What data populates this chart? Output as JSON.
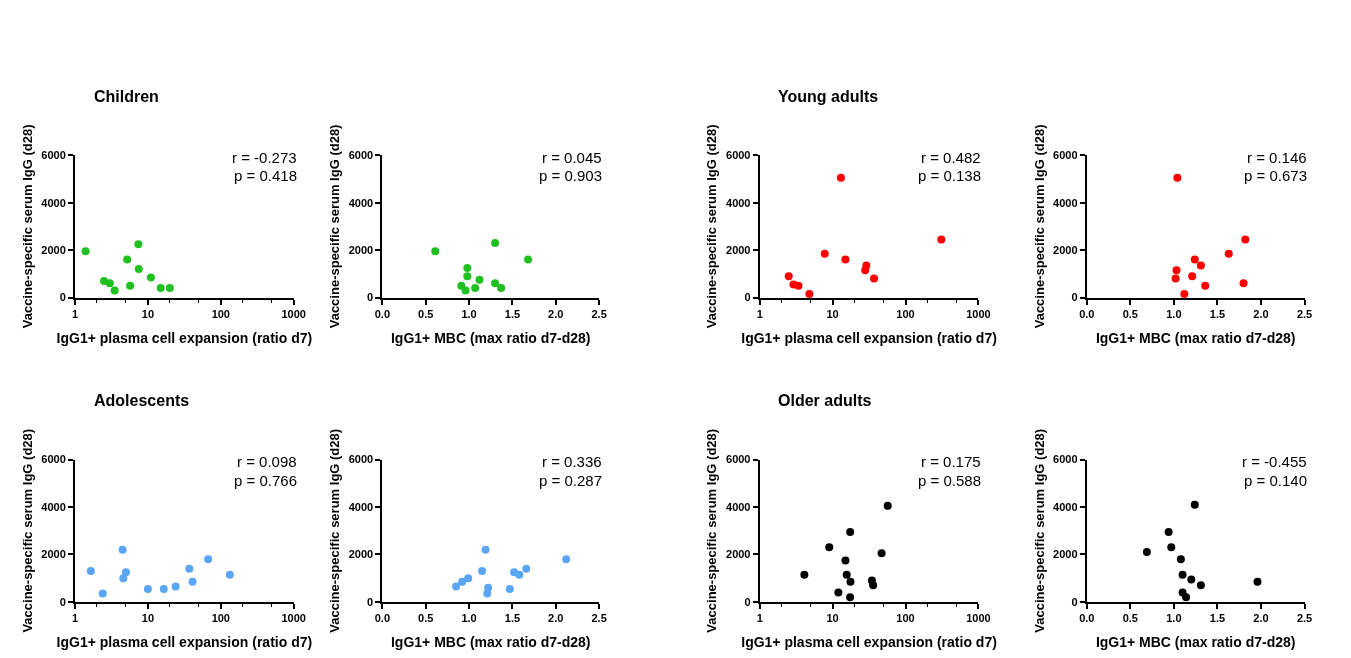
{
  "chart_data": [
    {
      "type": "scatter",
      "title": "Children",
      "xlabel": "IgG1+ plasma cell expansion (ratio d7)",
      "ylabel": "Vaccine-specific serum IgG (d28)",
      "log": "x",
      "marker": "circle",
      "xlim": [
        1,
        1000
      ],
      "xticks": [
        1,
        10,
        100,
        1000
      ],
      "ylim": [
        0,
        6000
      ],
      "yticks": [
        0,
        2000,
        4000,
        6000
      ],
      "annotations": [
        "r = -0.273",
        "p = 0.418"
      ],
      "color": "#1fc01f",
      "x": [
        1.4,
        2.5,
        3.0,
        3.5,
        5.2,
        5.7,
        7.4,
        7.5,
        11,
        15,
        20
      ],
      "values": [
        1950,
        700,
        600,
        300,
        1600,
        500,
        2250,
        1200,
        850,
        400,
        400
      ]
    },
    {
      "type": "scatter",
      "xlabel": "IgG1+ MBC (max ratio d7-d28)",
      "ylabel": "Vaccine-specific serum IgG (d28)",
      "marker": "circle",
      "xlim": [
        0,
        2.5
      ],
      "xticks": [
        {
          "value": 0,
          "label": "0.0"
        },
        0.5,
        {
          "value": 1,
          "label": "1.0"
        },
        1.5,
        {
          "value": 2,
          "label": "2.0"
        },
        2.5
      ],
      "ylim": [
        0,
        6000
      ],
      "yticks": [
        0,
        2000,
        4000,
        6000
      ],
      "annotations": [
        "r = 0.045",
        "p = 0.903"
      ],
      "color": "#1fc01f",
      "x": [
        0.61,
        0.91,
        0.96,
        0.98,
        0.98,
        1.07,
        1.12,
        1.3,
        1.3,
        1.37,
        1.68
      ],
      "values": [
        1950,
        500,
        300,
        900,
        1250,
        400,
        750,
        2300,
        600,
        400,
        1600
      ]
    },
    {
      "type": "scatter",
      "title": "Young adults",
      "xlabel": "IgG1+ plasma cell expansion (ratio d7)",
      "ylabel": "Vaccine-specific serum IgG (d28)",
      "log": "x",
      "marker": "circle",
      "xlim": [
        1,
        1000
      ],
      "xticks": [
        1,
        10,
        100,
        1000
      ],
      "ylim": [
        0,
        6000
      ],
      "yticks": [
        0,
        2000,
        4000,
        6000
      ],
      "annotations": [
        "r = 0.482",
        "p = 0.138"
      ],
      "color": "#ff0000",
      "x": [
        2.5,
        2.9,
        3.4,
        4.8,
        7.8,
        13,
        15,
        29,
        28,
        37,
        310
      ],
      "values": [
        900,
        550,
        500,
        150,
        1850,
        5050,
        1600,
        1350,
        1150,
        800,
        2450
      ]
    },
    {
      "type": "scatter",
      "xlabel": "IgG1+ MBC (max ratio d7-d28)",
      "ylabel": "Vaccine-specific serum IgG (d28)",
      "marker": "circle",
      "xlim": [
        0,
        2.5
      ],
      "xticks": [
        {
          "value": 0,
          "label": "0.0"
        },
        0.5,
        {
          "value": 1,
          "label": "1.0"
        },
        1.5,
        {
          "value": 2,
          "label": "2.0"
        },
        2.5
      ],
      "ylim": [
        0,
        6000
      ],
      "yticks": [
        0,
        2000,
        4000,
        6000
      ],
      "annotations": [
        "r = 0.146",
        "p = 0.673"
      ],
      "color": "#ff0000",
      "x": [
        1.02,
        1.03,
        1.04,
        1.12,
        1.21,
        1.24,
        1.31,
        1.36,
        1.63,
        1.8,
        1.82
      ],
      "values": [
        800,
        1150,
        5050,
        150,
        900,
        1600,
        1350,
        500,
        1850,
        600,
        2450
      ]
    },
    {
      "type": "scatter",
      "title": "Adolescents",
      "xlabel": "IgG1+ plasma cell expansion (ratio d7)",
      "ylabel": "Vaccine-specific serum IgG (d28)",
      "log": "x",
      "marker": "circle",
      "xlim": [
        1,
        1000
      ],
      "xticks": [
        1,
        10,
        100,
        1000
      ],
      "ylim": [
        0,
        6000
      ],
      "yticks": [
        0,
        2000,
        4000,
        6000
      ],
      "annotations": [
        "r = 0.098",
        "p = 0.766"
      ],
      "color": "#5aa6f5",
      "x": [
        1.65,
        2.4,
        4.5,
        4.6,
        5.0,
        10,
        16.5,
        24,
        37,
        41,
        67,
        133
      ],
      "values": [
        1300,
        350,
        2200,
        1000,
        1250,
        550,
        550,
        650,
        1400,
        850,
        1800,
        1150
      ]
    },
    {
      "type": "scatter",
      "xlabel": "IgG1+ MBC (max ratio d7-d28)",
      "ylabel": "Vaccine-specific serum IgG (d28)",
      "marker": "circle",
      "xlim": [
        0,
        2.5
      ],
      "xticks": [
        {
          "value": 0,
          "label": "0.0"
        },
        0.5,
        {
          "value": 1,
          "label": "1.0"
        },
        1.5,
        {
          "value": 2,
          "label": "2.0"
        },
        2.5
      ],
      "ylim": [
        0,
        6000
      ],
      "yticks": [
        0,
        2000,
        4000,
        6000
      ],
      "annotations": [
        "r = 0.336",
        "p = 0.287"
      ],
      "color": "#5aa6f5",
      "x": [
        0.85,
        0.92,
        0.99,
        1.15,
        1.19,
        1.22,
        1.21,
        1.47,
        1.52,
        1.58,
        1.66,
        2.12
      ],
      "values": [
        650,
        850,
        1000,
        1300,
        2200,
        600,
        350,
        550,
        1250,
        1150,
        1400,
        1800
      ]
    },
    {
      "type": "scatter",
      "title": "Older adults",
      "xlabel": "IgG1+ plasma cell expansion (ratio d7)",
      "ylabel": "Vaccine-specific serum IgG (d28)",
      "log": "x",
      "marker": "circle",
      "xlim": [
        1,
        1000
      ],
      "xticks": [
        1,
        10,
        100,
        1000
      ],
      "ylim": [
        0,
        6000
      ],
      "yticks": [
        0,
        2000,
        4000,
        6000
      ],
      "annotations": [
        "r = 0.175",
        "p = 0.588"
      ],
      "color": "#000000",
      "x": [
        4.1,
        9,
        12,
        15,
        15.6,
        17.4,
        17.6,
        17.4,
        34.6,
        36,
        47,
        57
      ],
      "values": [
        1150,
        2300,
        400,
        1750,
        1150,
        2950,
        850,
        200,
        900,
        700,
        2050,
        4050
      ]
    },
    {
      "type": "scatter",
      "xlabel": "IgG1+ MBC (max ratio d7-d28)",
      "ylabel": "Vaccine-specific serum IgG (d28)",
      "marker": "circle",
      "xlim": [
        0,
        2.5
      ],
      "xticks": [
        {
          "value": 0,
          "label": "0.0"
        },
        0.5,
        {
          "value": 1,
          "label": "1.0"
        },
        1.5,
        {
          "value": 2,
          "label": "2.0"
        },
        2.5
      ],
      "ylim": [
        0,
        6000
      ],
      "yticks": [
        0,
        2000,
        4000,
        6000
      ],
      "annotations": [
        "r = -0.455",
        "p = 0.140"
      ],
      "color": "#000000",
      "x": [
        0.69,
        0.94,
        0.97,
        1.08,
        1.1,
        1.1,
        1.14,
        1.2,
        1.24,
        1.31,
        1.96
      ],
      "values": [
        2100,
        2950,
        2300,
        1800,
        1150,
        400,
        200,
        950,
        4100,
        700,
        850
      ]
    }
  ]
}
